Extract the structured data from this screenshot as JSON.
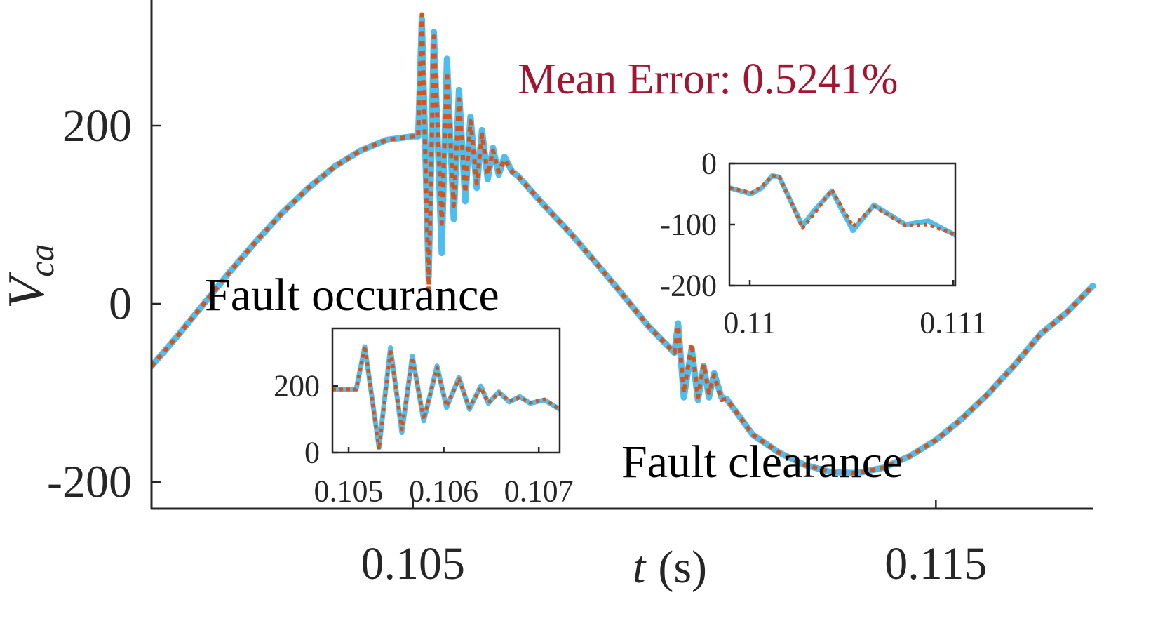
{
  "chart_data": [
    {
      "type": "line",
      "xlabel": [
        "t",
        "(s)"
      ],
      "ylabel": [
        "V",
        "ca"
      ],
      "annotations": [
        "Mean Error: 0.5241%",
        "Fault occurance",
        "Fault clearance"
      ],
      "xlim": [
        0.1,
        0.118
      ],
      "ylim": [
        -230,
        341
      ],
      "xticks": [
        0.105,
        0.115
      ],
      "yticks": [
        -200,
        0,
        200
      ],
      "x": [
        0.1,
        0.1005,
        0.101,
        0.1015,
        0.102,
        0.1025,
        0.103,
        0.1035,
        0.104,
        0.1045,
        0.105,
        0.1051,
        0.10517,
        0.1053,
        0.1054,
        0.10555,
        0.10565,
        0.10578,
        0.10588,
        0.106,
        0.1061,
        0.10622,
        0.10632,
        0.10643,
        0.10653,
        0.10664,
        0.10675,
        0.1069,
        0.107,
        0.1075,
        0.108,
        0.1085,
        0.109,
        0.1095,
        0.11,
        0.11007,
        0.11018,
        0.11033,
        0.11045,
        0.11056,
        0.11066,
        0.11076,
        0.1109,
        0.111,
        0.1115,
        0.112,
        0.1125,
        0.113,
        0.1135,
        0.114,
        0.1145,
        0.115,
        0.1155,
        0.116,
        0.1165,
        0.117,
        0.1175,
        0.118
      ],
      "series": [
        {
          "color": "#4DBEEE",
          "style": "solid",
          "values": [
            -70,
            -36,
            0,
            36,
            70,
            102,
            130,
            154,
            172,
            184,
            188,
            188,
            320,
            30,
            305,
            57,
            275,
            95,
            240,
            115,
            210,
            130,
            195,
            140,
            175,
            145,
            165,
            148,
            144,
            111,
            80,
            46,
            11,
            -25,
            -55,
            -22,
            -105,
            -50,
            -108,
            -70,
            -105,
            -78,
            -105,
            -107,
            -147,
            -167,
            -181,
            -189,
            -190,
            -184,
            -171,
            -153,
            -129,
            -101,
            -69,
            -34,
            -10,
            20
          ]
        },
        {
          "color": "#D95319",
          "style": "dotted",
          "values": [
            -70,
            -36,
            0,
            36,
            70,
            102,
            130,
            154,
            172,
            184,
            188,
            188,
            325,
            15,
            300,
            90,
            260,
            110,
            230,
            125,
            205,
            135,
            190,
            145,
            172,
            148,
            162,
            148,
            144,
            111,
            80,
            46,
            11,
            -25,
            -55,
            -25,
            -100,
            -45,
            -105,
            -68,
            -100,
            -80,
            -108,
            -107,
            -147,
            -167,
            -181,
            -189,
            -190,
            -184,
            -171,
            -153,
            -129,
            -101,
            -69,
            -34,
            -10,
            20
          ]
        }
      ]
    },
    {
      "type": "line",
      "xlim": [
        0.10483,
        0.10722
      ],
      "ylim": [
        0,
        373
      ],
      "xticks": [
        0.105,
        0.106,
        0.107
      ],
      "yticks": [
        0,
        200
      ],
      "x": [
        0.10483,
        0.10508,
        0.10517,
        0.10532,
        0.10544,
        0.10556,
        0.10567,
        0.10579,
        0.10593,
        0.10603,
        0.10616,
        0.10627,
        0.10639,
        0.10647,
        0.10658,
        0.10669,
        0.1068,
        0.10691,
        0.10706,
        0.10722
      ],
      "series": [
        {
          "color": "#4DBEEE",
          "style": "solid",
          "values": [
            190,
            190,
            318,
            15,
            315,
            60,
            290,
            95,
            260,
            135,
            225,
            130,
            200,
            148,
            182,
            152,
            168,
            148,
            158,
            130
          ]
        },
        {
          "color": "#D95319",
          "style": "dotted",
          "values": [
            190,
            190,
            320,
            10,
            310,
            70,
            285,
            100,
            255,
            140,
            220,
            135,
            195,
            150,
            180,
            155,
            165,
            150,
            160,
            130
          ]
        }
      ]
    },
    {
      "type": "line",
      "xlim": [
        0.1099,
        0.11101
      ],
      "ylim": [
        -200,
        0
      ],
      "xticks": [
        0.11,
        0.111
      ],
      "yticks": [
        -200,
        -100,
        0
      ],
      "x": [
        0.109903,
        0.110007,
        0.110059,
        0.11011,
        0.110145,
        0.110207,
        0.110259,
        0.110317,
        0.110403,
        0.110507,
        0.11061,
        0.110766,
        0.110876,
        0.111014
      ],
      "series": [
        {
          "color": "#4DBEEE",
          "style": "solid",
          "values": [
            -40,
            -50,
            -40,
            -20,
            -22,
            -66,
            -102,
            -77,
            -45,
            -110,
            -68,
            -100,
            -94,
            -118
          ]
        },
        {
          "color": "#D95319",
          "style": "dotted",
          "values": [
            -40,
            -48,
            -38,
            -20,
            -22,
            -66,
            -106,
            -82,
            -43,
            -103,
            -70,
            -102,
            -100,
            -117
          ]
        }
      ]
    }
  ]
}
